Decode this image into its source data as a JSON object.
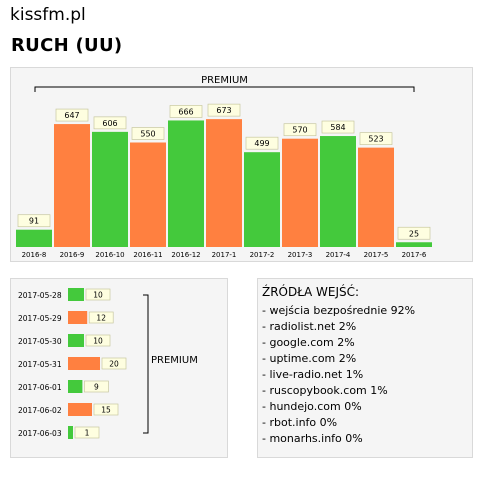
{
  "header": {
    "site_name": "kissfm.pl",
    "title": "RUCH (UU)"
  },
  "colors": {
    "up": "#44c93c",
    "down": "#ff8040",
    "label_bg": "#fefee0"
  },
  "chart_data": [
    {
      "type": "bar",
      "annotation": "PREMIUM",
      "categories": [
        "2016-8",
        "2016-9",
        "2016-10",
        "2016-11",
        "2016-12",
        "2017-1",
        "2017-2",
        "2017-3",
        "2017-4",
        "2017-5",
        "2017-6"
      ],
      "values": [
        91,
        647,
        606,
        550,
        666,
        673,
        499,
        570,
        584,
        523,
        25
      ],
      "bar_colors": [
        "green",
        "orange",
        "green",
        "orange",
        "green",
        "orange",
        "green",
        "orange",
        "green",
        "orange",
        "green"
      ],
      "ylim": [
        0,
        700
      ]
    },
    {
      "type": "bar",
      "orientation": "horizontal",
      "annotation": "PREMIUM",
      "categories": [
        "2017-05-28",
        "2017-05-29",
        "2017-05-30",
        "2017-05-31",
        "2017-06-01",
        "2017-06-02",
        "2017-06-03"
      ],
      "values": [
        10,
        12,
        10,
        20,
        9,
        15,
        1
      ],
      "bar_colors": [
        "green",
        "orange",
        "green",
        "orange",
        "green",
        "orange",
        "green"
      ]
    }
  ],
  "sources": {
    "title": "ŹRÓDŁA WEJŚĆ:",
    "items": [
      "- wejścia bezpośrednie 92%",
      "- radiolist.net 2%",
      "- google.com 2%",
      "- uptime.com 2%",
      "- live-radio.net 1%",
      "- ruscopybook.com 1%",
      "- hundejo.com 0%",
      "- rbot.info 0%",
      "- monarhs.info 0%"
    ]
  }
}
